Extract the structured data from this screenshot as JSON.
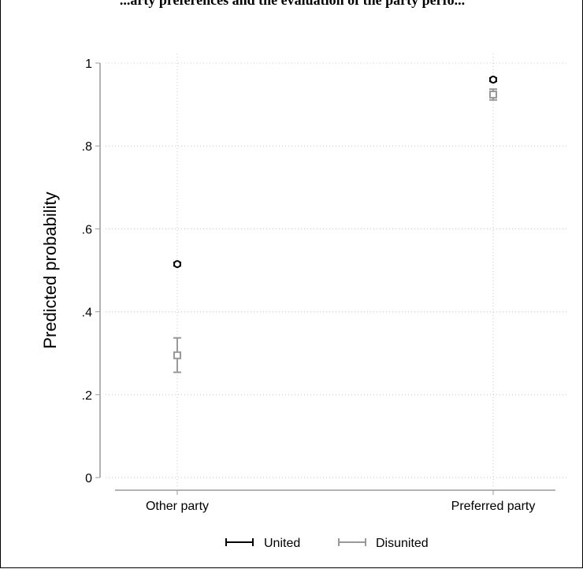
{
  "chart_data": {
    "type": "scatter",
    "title": "...arty preferences and the evaluation of the party perfo...",
    "ylabel": "Predicted probability",
    "xlabel": "",
    "categories": [
      "Other party",
      "Preferred party"
    ],
    "ylim": [
      0,
      1
    ],
    "yticks": [
      0,
      0.2,
      0.4,
      0.6,
      0.8,
      1
    ],
    "ytick_labels": [
      "0",
      ".2",
      ".4",
      ".6",
      ".8",
      "1"
    ],
    "grid": true,
    "legend_position": "bottom",
    "series": [
      {
        "name": "United",
        "color": "#000000",
        "marker": "circle",
        "values": [
          0.515,
          0.96
        ],
        "ci_low": [
          0.511,
          0.956
        ],
        "ci_high": [
          0.519,
          0.964
        ]
      },
      {
        "name": "Disunited",
        "color": "#999999",
        "marker": "square",
        "values": [
          0.295,
          0.924
        ],
        "ci_low": [
          0.254,
          0.911
        ],
        "ci_high": [
          0.337,
          0.937
        ]
      }
    ]
  }
}
